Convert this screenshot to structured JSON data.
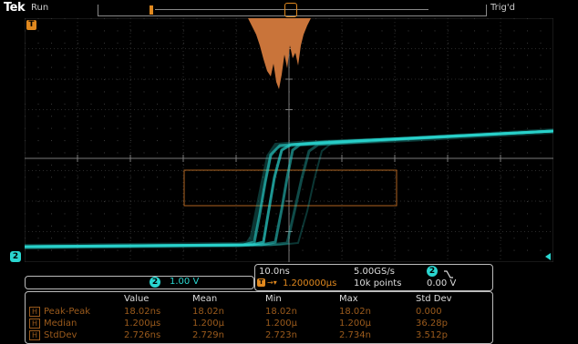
{
  "header": {
    "brand": "Tek",
    "run_state": "Run",
    "trigger_state": "Trig'd"
  },
  "markers": {
    "trigger_marker": "T",
    "channel_marker": "2"
  },
  "channel": {
    "number": "2",
    "scale": "1.00 V",
    "color": "#2ad6d0"
  },
  "timebase": {
    "time_per_div": "10.0ns",
    "sample_rate": "5.00GS/s",
    "record_length": "10k points",
    "trigger_position": "1.200000µs",
    "trigger_source": "2",
    "trigger_level": "0.00 V",
    "trigger_slope_icon": "falling-slope-icon"
  },
  "measurements": {
    "columns": [
      "Value",
      "Mean",
      "Min",
      "Max",
      "Std Dev"
    ],
    "rows": [
      {
        "icon": "H",
        "name": "Peak-Peak",
        "values": [
          "18.02ns",
          "18.02n",
          "18.02n",
          "18.02n",
          "0.000"
        ]
      },
      {
        "icon": "H",
        "name": "Median",
        "values": [
          "1.200µs",
          "1.200µ",
          "1.200µ",
          "1.200µ",
          "36.28p"
        ]
      },
      {
        "icon": "H",
        "name": "StdDev",
        "values": [
          "2.726ns",
          "2.729n",
          "2.723n",
          "2.734n",
          "3.512p"
        ]
      }
    ]
  },
  "colors": {
    "waveform": "#2ad6d0",
    "histogram": "#c9743a",
    "accent": "#e0881e"
  }
}
